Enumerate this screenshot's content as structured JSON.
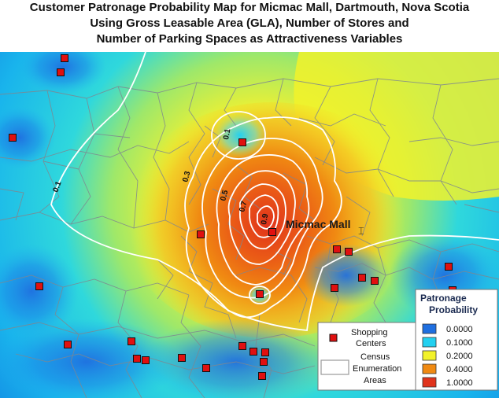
{
  "title": {
    "line1": "Customer Patronage Probability Map for Micmac Mall, Dartmouth, Nova Scotia",
    "line2": "Using Gross Leasable Area (GLA), Number of Stores and",
    "line3": "Number of Parking Spaces as Attractiveness Variables"
  },
  "map": {
    "focus_label": "Micmac Mall",
    "contour_labels": [
      "0.1",
      "0.1",
      "0.3",
      "0.5",
      "0.7",
      "0.9"
    ]
  },
  "legend": {
    "symbols": {
      "shopping_centers": [
        "Shopping",
        "Centers"
      ],
      "census_areas": [
        "Census",
        "Enumeration",
        "Areas"
      ]
    },
    "probability": {
      "title": [
        "Patronage",
        "Probability"
      ],
      "classes": [
        {
          "label": "0.0000",
          "color": "#1f6fe0"
        },
        {
          "label": "0.1000",
          "color": "#23d0f0"
        },
        {
          "label": "0.2000",
          "color": "#f2f22a"
        },
        {
          "label": "0.4000",
          "color": "#f08a12"
        },
        {
          "label": "1.0000",
          "color": "#e0331c"
        }
      ]
    }
  },
  "colors": {
    "store_marker": "#e01010",
    "contour": "#ffffff",
    "boundaries": "#7f8790"
  }
}
